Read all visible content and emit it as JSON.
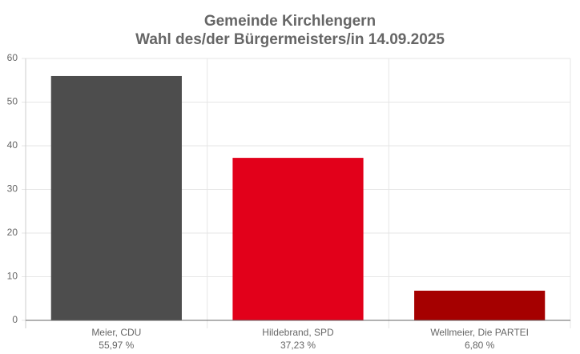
{
  "chart_data": {
    "type": "bar",
    "title": "Gemeinde Kirchlengern",
    "subtitle": "Wahl des/der Bürgermeisters/in 14.09.2025",
    "categories": [
      "Meier, CDU",
      "Hildebrand, SPD",
      "Wellmeier, Die PARTEI"
    ],
    "values": [
      55.97,
      37.23,
      6.8
    ],
    "value_labels": [
      "55,97 %",
      "37,23 %",
      "6,80 %"
    ],
    "colors": [
      "#4d4d4d",
      "#e2001a",
      "#a50000"
    ],
    "ylim": [
      0,
      60
    ],
    "yticks": [
      0,
      10,
      20,
      30,
      40,
      50,
      60
    ],
    "grid": true
  }
}
